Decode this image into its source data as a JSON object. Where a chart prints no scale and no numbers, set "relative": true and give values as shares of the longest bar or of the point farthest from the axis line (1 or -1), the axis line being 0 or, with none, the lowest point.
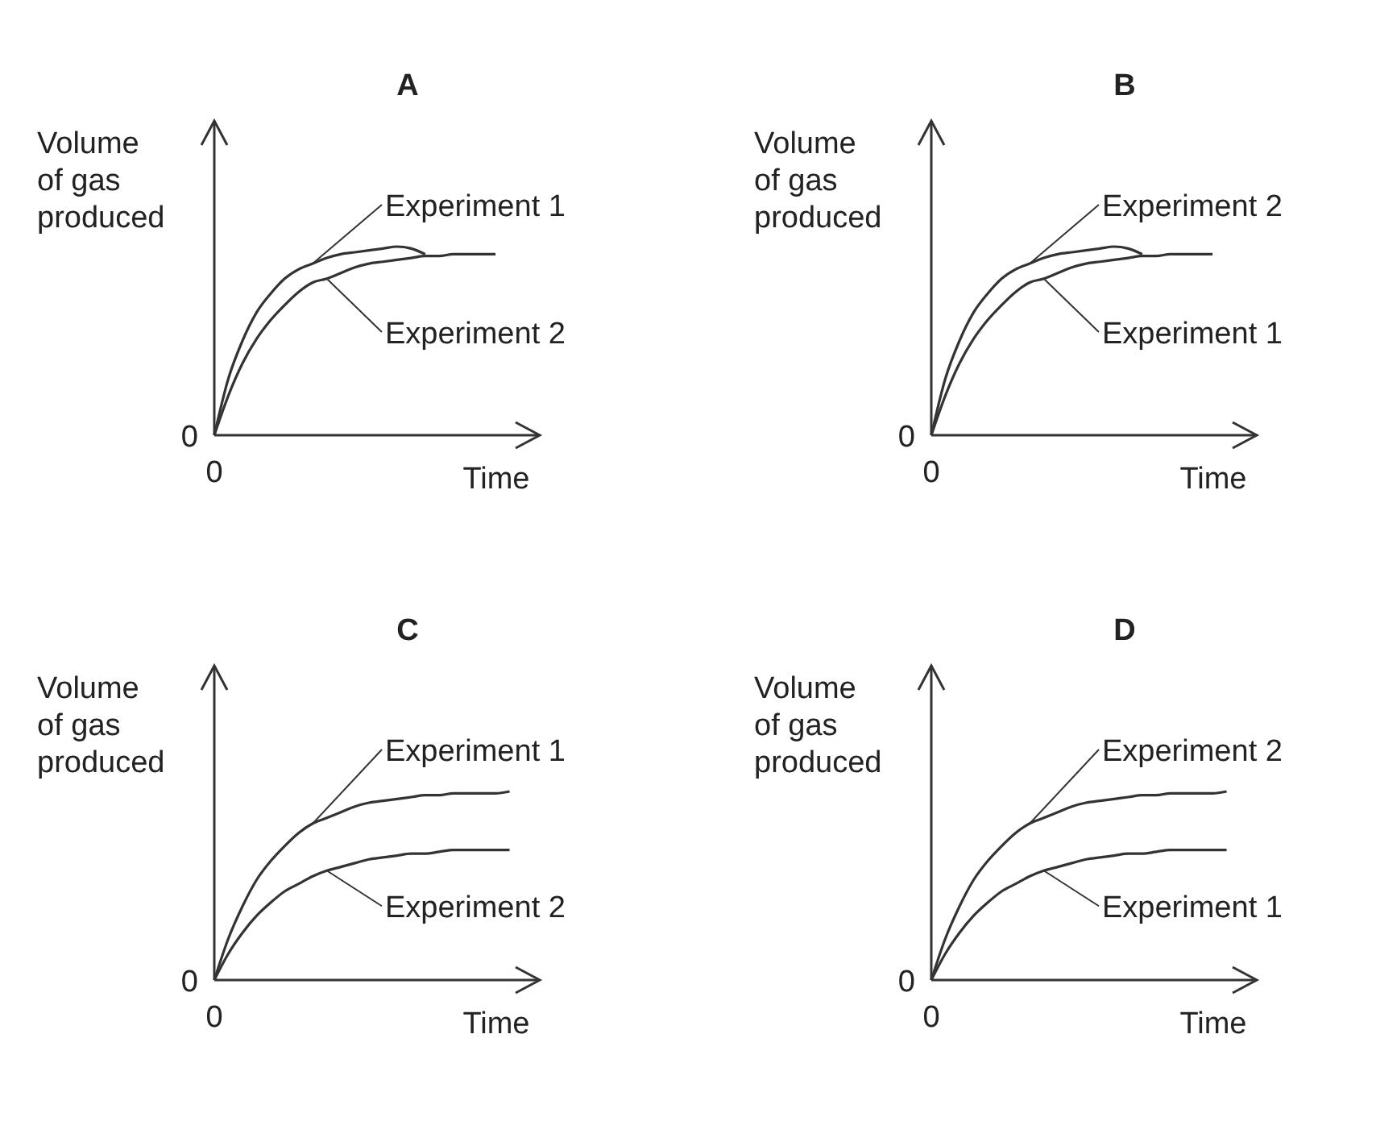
{
  "chart_data": [
    {
      "type": "line",
      "title": "A",
      "xlabel": "Time",
      "ylabel": "Volume of gas produced",
      "relative": true,
      "marker": "none",
      "annotations": [
        "0",
        "0"
      ],
      "categories": [
        null,
        null,
        null,
        null,
        null,
        null,
        null,
        null,
        null,
        null,
        null,
        null,
        null,
        null,
        null,
        null,
        null,
        null,
        null,
        null,
        null,
        null,
        null
      ],
      "series": [
        {
          "name": "Experiment 1",
          "color": "#333333",
          "values": [
            0,
            0.3,
            0.5,
            0.65,
            0.75,
            0.83,
            0.88,
            0.91,
            0.94,
            0.96,
            0.97,
            0.98,
            0.99,
            1,
            0.99,
            0.96,
            null,
            null,
            null,
            null,
            null,
            null,
            null
          ]
        },
        {
          "name": "Experiment 2",
          "color": "#333333",
          "values": [
            0,
            0.21,
            0.38,
            0.51,
            0.61,
            0.69,
            0.76,
            0.81,
            0.83,
            0.86,
            0.89,
            0.91,
            0.92,
            0.93,
            0.94,
            0.95,
            0.95,
            0.96,
            0.96,
            0.96,
            0.96,
            null,
            null
          ]
        }
      ]
    },
    {
      "type": "line",
      "title": "B",
      "xlabel": "Time",
      "ylabel": "Volume of gas produced",
      "relative": true,
      "marker": "none",
      "annotations": [
        "0",
        "0"
      ],
      "categories": [
        null,
        null,
        null,
        null,
        null,
        null,
        null,
        null,
        null,
        null,
        null,
        null,
        null,
        null,
        null,
        null,
        null,
        null,
        null,
        null,
        null,
        null,
        null
      ],
      "series": [
        {
          "name": "Experiment 1",
          "color": "#333333",
          "values": [
            0,
            0.21,
            0.38,
            0.51,
            0.61,
            0.69,
            0.76,
            0.81,
            0.83,
            0.86,
            0.89,
            0.91,
            0.92,
            0.93,
            0.94,
            0.95,
            0.95,
            0.96,
            0.96,
            0.96,
            0.96,
            null,
            null
          ]
        },
        {
          "name": "Experiment 2",
          "color": "#333333",
          "values": [
            0,
            0.3,
            0.5,
            0.65,
            0.75,
            0.83,
            0.88,
            0.91,
            0.94,
            0.96,
            0.97,
            0.98,
            0.99,
            1,
            0.99,
            0.96,
            null,
            null,
            null,
            null,
            null,
            null,
            null
          ]
        }
      ]
    },
    {
      "type": "line",
      "title": "C",
      "xlabel": "Time",
      "ylabel": "Volume of gas produced",
      "relative": true,
      "marker": "none",
      "annotations": [
        "0",
        "0"
      ],
      "categories": [
        null,
        null,
        null,
        null,
        null,
        null,
        null,
        null,
        null,
        null,
        null,
        null,
        null,
        null,
        null,
        null,
        null,
        null,
        null,
        null,
        null,
        null,
        null
      ],
      "series": [
        {
          "name": "Experiment 1",
          "color": "#333333",
          "values": [
            0,
            0.22,
            0.39,
            0.53,
            0.63,
            0.71,
            0.78,
            0.83,
            0.86,
            0.89,
            0.92,
            0.94,
            0.95,
            0.96,
            0.97,
            0.98,
            0.98,
            0.99,
            0.99,
            0.99,
            0.99,
            1,
            null
          ]
        },
        {
          "name": "Experiment 2",
          "color": "#333333",
          "values": [
            0,
            0.14,
            0.25,
            0.34,
            0.41,
            0.47,
            0.51,
            0.55,
            0.58,
            0.6,
            0.62,
            0.64,
            0.65,
            0.66,
            0.67,
            0.67,
            0.68,
            0.69,
            0.69,
            0.69,
            0.69,
            0.69,
            null
          ]
        }
      ]
    },
    {
      "type": "line",
      "title": "D",
      "xlabel": "Time",
      "ylabel": "Volume of gas produced",
      "relative": true,
      "marker": "none",
      "annotations": [
        "0",
        "0"
      ],
      "categories": [
        null,
        null,
        null,
        null,
        null,
        null,
        null,
        null,
        null,
        null,
        null,
        null,
        null,
        null,
        null,
        null,
        null,
        null,
        null,
        null,
        null,
        null,
        null
      ],
      "series": [
        {
          "name": "Experiment 1",
          "color": "#333333",
          "values": [
            0,
            0.14,
            0.25,
            0.34,
            0.41,
            0.47,
            0.51,
            0.55,
            0.58,
            0.6,
            0.62,
            0.64,
            0.65,
            0.66,
            0.67,
            0.67,
            0.68,
            0.69,
            0.69,
            0.69,
            0.69,
            0.69,
            null
          ]
        },
        {
          "name": "Experiment 2",
          "color": "#333333",
          "values": [
            0,
            0.22,
            0.39,
            0.53,
            0.63,
            0.71,
            0.78,
            0.83,
            0.86,
            0.89,
            0.92,
            0.94,
            0.95,
            0.96,
            0.97,
            0.98,
            0.98,
            0.99,
            0.99,
            0.99,
            0.99,
            1,
            null
          ]
        }
      ]
    }
  ]
}
